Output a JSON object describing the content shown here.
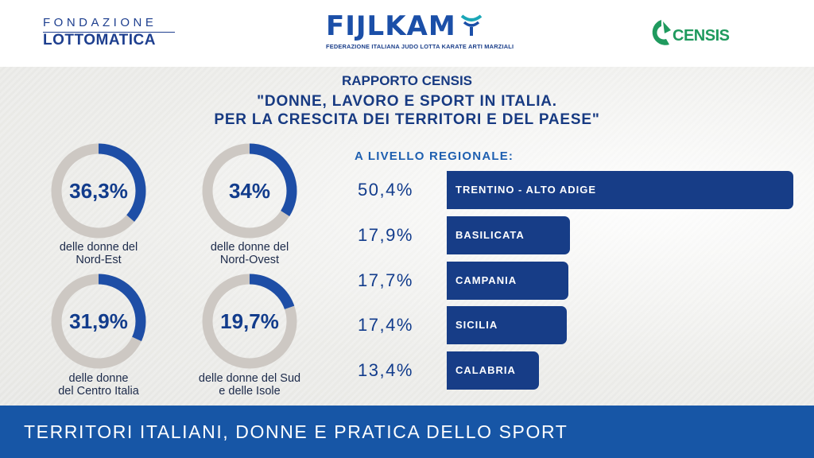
{
  "logos": {
    "fondazione_line1": "FONDAZIONE",
    "fondazione_line2": "LOTTOMATICA",
    "fijlkam_name": "FIJLKAM",
    "fijlkam_sub": "FEDERAZIONE ITALIANA JUDO LOTTA KARATE ARTI MARZIALI",
    "censis_name": "CENSIS"
  },
  "header": {
    "line1": "RAPPORTO CENSIS",
    "line2": "\"DONNE, LAVORO E SPORT IN ITALIA.",
    "line3": "PER LA CRESCITA DEI TERRITORI E DEL PAESE\""
  },
  "colors": {
    "accent": "#173d87",
    "ring_track": "#cdc8c3",
    "ring_fill": "#1e4ea6",
    "footer": "#1756a6"
  },
  "chart_data": [
    {
      "type": "pie",
      "subtype": "donut",
      "items": [
        {
          "label_display": "36,3%",
          "value": 36.3,
          "caption_1": "delle donne del",
          "caption_2": "Nord-Est"
        },
        {
          "label_display": "34%",
          "value": 34,
          "caption_1": "delle donne del",
          "caption_2": "Nord-Ovest"
        },
        {
          "label_display": "31,9%",
          "value": 31.9,
          "caption_1": "delle donne",
          "caption_2": "del Centro Italia"
        },
        {
          "label_display": "19,7%",
          "value": 19.7,
          "caption_1": "delle donne del Sud",
          "caption_2": "e delle Isole"
        }
      ]
    },
    {
      "type": "bar",
      "orientation": "horizontal",
      "title": "A LIVELLO REGIONALE:",
      "categories": [
        "TRENTINO - ALTO ADIGE",
        "BASILICATA",
        "CAMPANIA",
        "SICILIA",
        "CALABRIA"
      ],
      "values": [
        50.4,
        17.9,
        17.7,
        17.4,
        13.4
      ],
      "value_labels": [
        "50,4%",
        "17,9%",
        "17,7%",
        "17,4%",
        "13,4%"
      ]
    }
  ],
  "footer": {
    "text": "TERRITORI ITALIANI, DONNE E PRATICA DELLO SPORT"
  }
}
